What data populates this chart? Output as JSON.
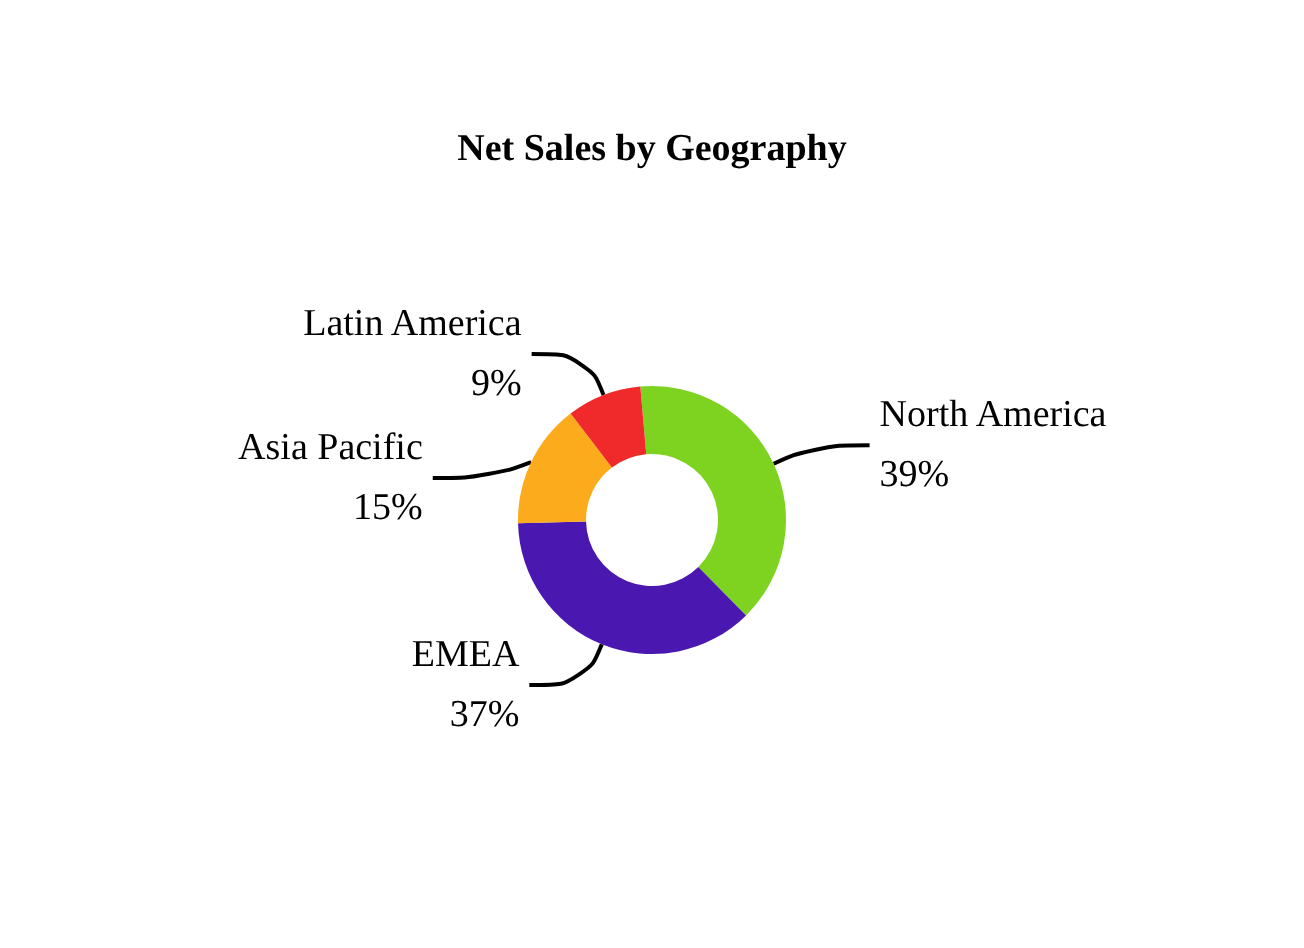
{
  "chart_data": {
    "type": "donut",
    "title": "Net Sales by Geography",
    "categories": [
      "North America",
      "EMEA",
      "Asia Pacific",
      "Latin America"
    ],
    "values": [
      39,
      37,
      15,
      9
    ],
    "value_labels": [
      "39%",
      "37%",
      "15%",
      "9%"
    ],
    "colors": [
      "#7ed321",
      "#4a17b0",
      "#fbab1c",
      "#f02a2a"
    ],
    "legend": false
  }
}
